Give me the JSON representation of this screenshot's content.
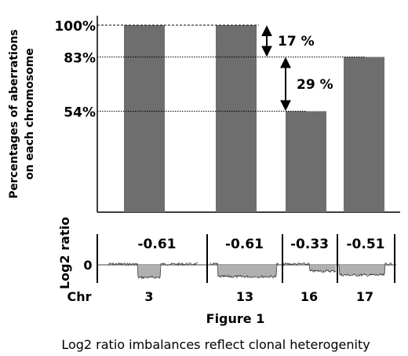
{
  "chart_data": [
    {
      "type": "bar",
      "categories": [
        "3",
        "13",
        "16",
        "17"
      ],
      "values": [
        100,
        100,
        54,
        83
      ],
      "ylabel_line1": "Percentages of  aberrations",
      "ylabel_line2": "on each chromosome",
      "reference_labels": [
        "100%",
        "83%",
        "54%"
      ],
      "reference_values": [
        100,
        83,
        54
      ],
      "differences": [
        {
          "label": "17 %",
          "from": 100,
          "to": 83
        },
        {
          "label": "29 %",
          "from": 83,
          "to": 54
        }
      ],
      "bar_color": "#6e6e6e",
      "ylim": [
        0,
        100
      ]
    },
    {
      "type": "line",
      "ylabel": "Log2 ratio",
      "zero_label": "0",
      "xlabel": "Chr",
      "chromosomes": [
        "3",
        "13",
        "16",
        "17"
      ],
      "mean_ratios": [
        "-0.61",
        "-0.61",
        "-0.33",
        "-0.51"
      ],
      "fill_color": "#b0b0b0"
    }
  ],
  "figure_label": "Figure 1",
  "caption": "Log2 ratio imbalances reflect clonal heterogenity"
}
